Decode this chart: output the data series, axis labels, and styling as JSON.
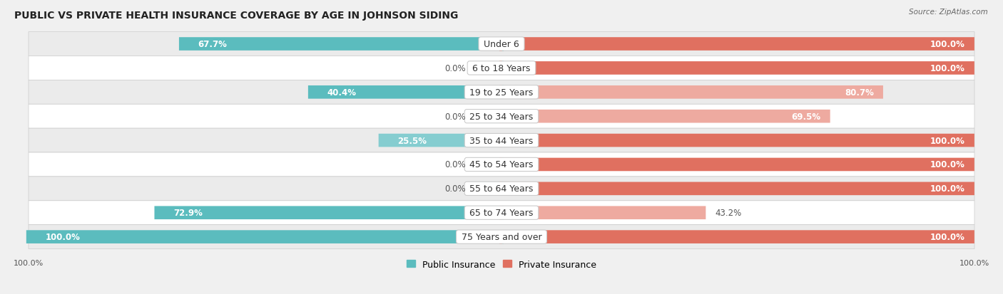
{
  "title": "PUBLIC VS PRIVATE HEALTH INSURANCE COVERAGE BY AGE IN JOHNSON SIDING",
  "source": "Source: ZipAtlas.com",
  "categories": [
    "Under 6",
    "6 to 18 Years",
    "19 to 25 Years",
    "25 to 34 Years",
    "35 to 44 Years",
    "45 to 54 Years",
    "55 to 64 Years",
    "65 to 74 Years",
    "75 Years and over"
  ],
  "public_values": [
    67.7,
    0.0,
    40.4,
    0.0,
    25.5,
    0.0,
    0.0,
    72.9,
    100.0
  ],
  "private_values": [
    100.0,
    100.0,
    80.7,
    69.5,
    100.0,
    100.0,
    100.0,
    43.2,
    100.0
  ],
  "public_color": "#5bbcbe",
  "public_color_light": "#85cdd0",
  "private_color": "#e07060",
  "private_color_light": "#eeaaa0",
  "row_bg_light": "#f5f5f5",
  "row_bg_dark": "#e8e8e8",
  "title_fontsize": 10,
  "label_fontsize": 9,
  "value_fontsize": 8.5,
  "tick_fontsize": 8,
  "max_value": 100.0,
  "figsize": [
    14.06,
    4.14
  ],
  "dpi": 100
}
